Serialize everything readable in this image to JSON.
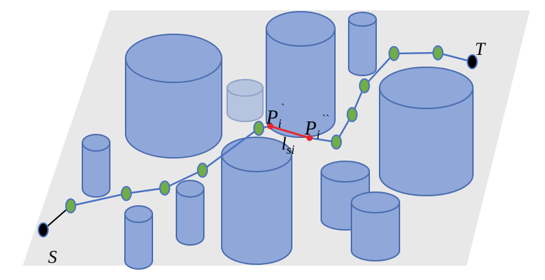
{
  "colors": {
    "plane": "#e8e8e8",
    "cylinder_fill": "#8fa8d9",
    "cylinder_stroke": "#4a6cb0",
    "path": "#4a72c4",
    "node": "#70ad47",
    "segment": "#e8262b",
    "endpoint": "#000000"
  },
  "labels": {
    "start": "S",
    "target": "T",
    "p1_base": "P",
    "p1_sub": "i",
    "p1_sup": "`",
    "p2_base": "P",
    "p2_sub": "i",
    "p2_sup": "``",
    "seg_base": "l",
    "seg_sub": "si"
  }
}
